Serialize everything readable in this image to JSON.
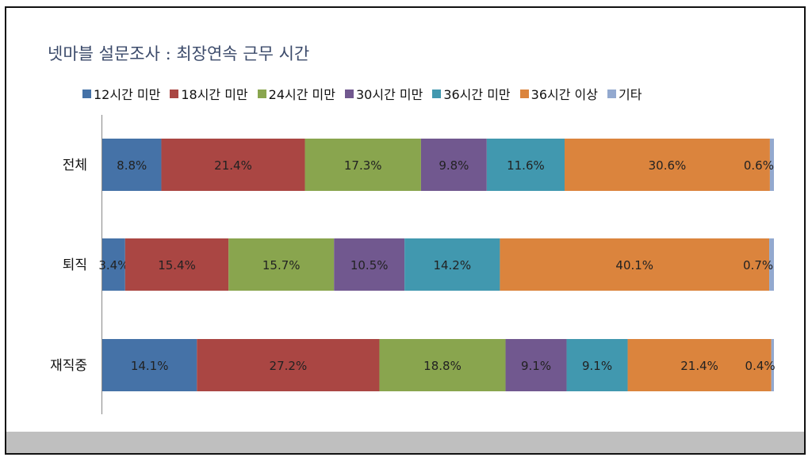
{
  "chart_data": {
    "type": "bar",
    "orientation": "horizontal",
    "stacked": "percent",
    "title": "넷마블 설문조사 : 최장연속 근무 시간",
    "categories": [
      "전체",
      "퇴직",
      "재직중"
    ],
    "series": [
      {
        "name": "12시간 미만",
        "color": "#4572A7",
        "values": [
          8.8,
          3.4,
          14.1
        ]
      },
      {
        "name": "18시간 미만",
        "color": "#AA4643",
        "values": [
          21.4,
          15.4,
          27.2
        ]
      },
      {
        "name": "24시간 미만",
        "color": "#89A54E",
        "values": [
          17.3,
          15.7,
          18.8
        ]
      },
      {
        "name": "30시간 미만",
        "color": "#71588F",
        "values": [
          9.8,
          10.5,
          9.1
        ]
      },
      {
        "name": "36시간 미만",
        "color": "#4198AF",
        "values": [
          11.6,
          14.2,
          9.1
        ]
      },
      {
        "name": "36시간 이상",
        "color": "#DB843D",
        "values": [
          30.6,
          40.1,
          21.4
        ]
      },
      {
        "name": "기타",
        "color": "#93A9CF",
        "values": [
          0.6,
          0.7,
          0.4
        ]
      }
    ],
    "value_suffix": "%",
    "legend_position": "top",
    "grid": false
  }
}
